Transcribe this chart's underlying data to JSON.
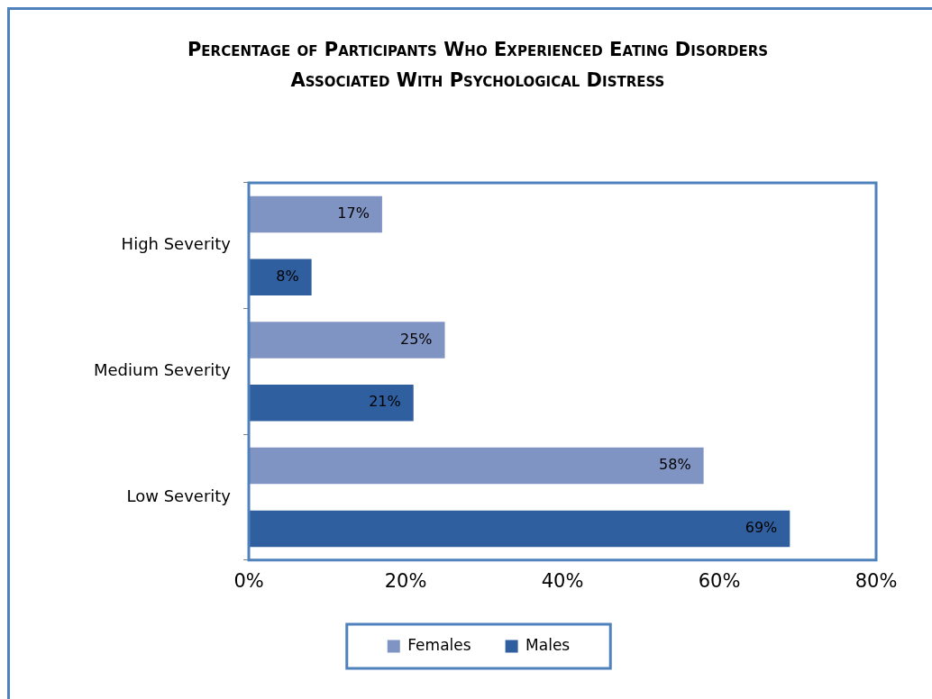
{
  "chart_data": {
    "type": "bar",
    "orientation": "horizontal",
    "title": "Percentage of Participants Who Experienced Eating Disorders Associated With Psychological Distress",
    "categories": [
      "High Severity",
      "Medium Severity",
      "Low Severity"
    ],
    "series": [
      {
        "name": "Females",
        "color": "#8094c4",
        "values": [
          17,
          25,
          58
        ],
        "value_labels": [
          "17%",
          "25%",
          "58%"
        ]
      },
      {
        "name": "Males",
        "color": "#2f5f9f",
        "values": [
          8,
          21,
          69
        ],
        "value_labels": [
          "8%",
          "21%",
          "69%"
        ]
      }
    ],
    "xlim": [
      0,
      80
    ],
    "xticks": [
      {
        "value": 0,
        "label": "0%"
      },
      {
        "value": 20,
        "label": "20%"
      },
      {
        "value": 40,
        "label": "40%"
      },
      {
        "value": 60,
        "label": "60%"
      },
      {
        "value": 80,
        "label": "80%"
      }
    ],
    "grid": false,
    "legend": "bottom"
  }
}
